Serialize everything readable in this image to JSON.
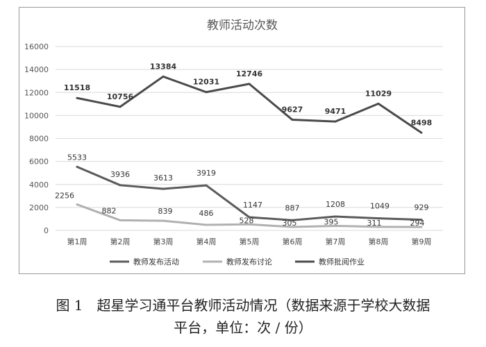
{
  "chart_data": {
    "type": "line",
    "title": "教师活动次数",
    "categories": [
      "第1周",
      "第2周",
      "第3周",
      "第4周",
      "第5周",
      "第6周",
      "第7周",
      "第8周",
      "第9周"
    ],
    "ylim": [
      0,
      16000
    ],
    "yticks": [
      "0",
      "2000",
      "4000",
      "6000",
      "8000",
      "10000",
      "12000",
      "14000",
      "16000"
    ],
    "grid": true,
    "legend_position": "bottom",
    "series": [
      {
        "name": "教师发布活动",
        "values": [
          5533,
          3936,
          3613,
          3919,
          1147,
          887,
          1208,
          1049,
          929
        ],
        "color": "#5a5a5a"
      },
      {
        "name": "教师发布讨论",
        "values": [
          2256,
          882,
          839,
          486,
          528,
          305,
          395,
          311,
          294
        ],
        "color": "#b0b0b0"
      },
      {
        "name": "教师批阅作业",
        "values": [
          11518,
          10756,
          13384,
          12031,
          12746,
          9627,
          9471,
          11029,
          8498
        ],
        "color": "#4a4a4a"
      }
    ]
  },
  "caption": {
    "line1": "图 1　超星学习通平台教师活动情况（数据来源于学校大数据",
    "line2": "平台，单位：次 / 份）"
  }
}
